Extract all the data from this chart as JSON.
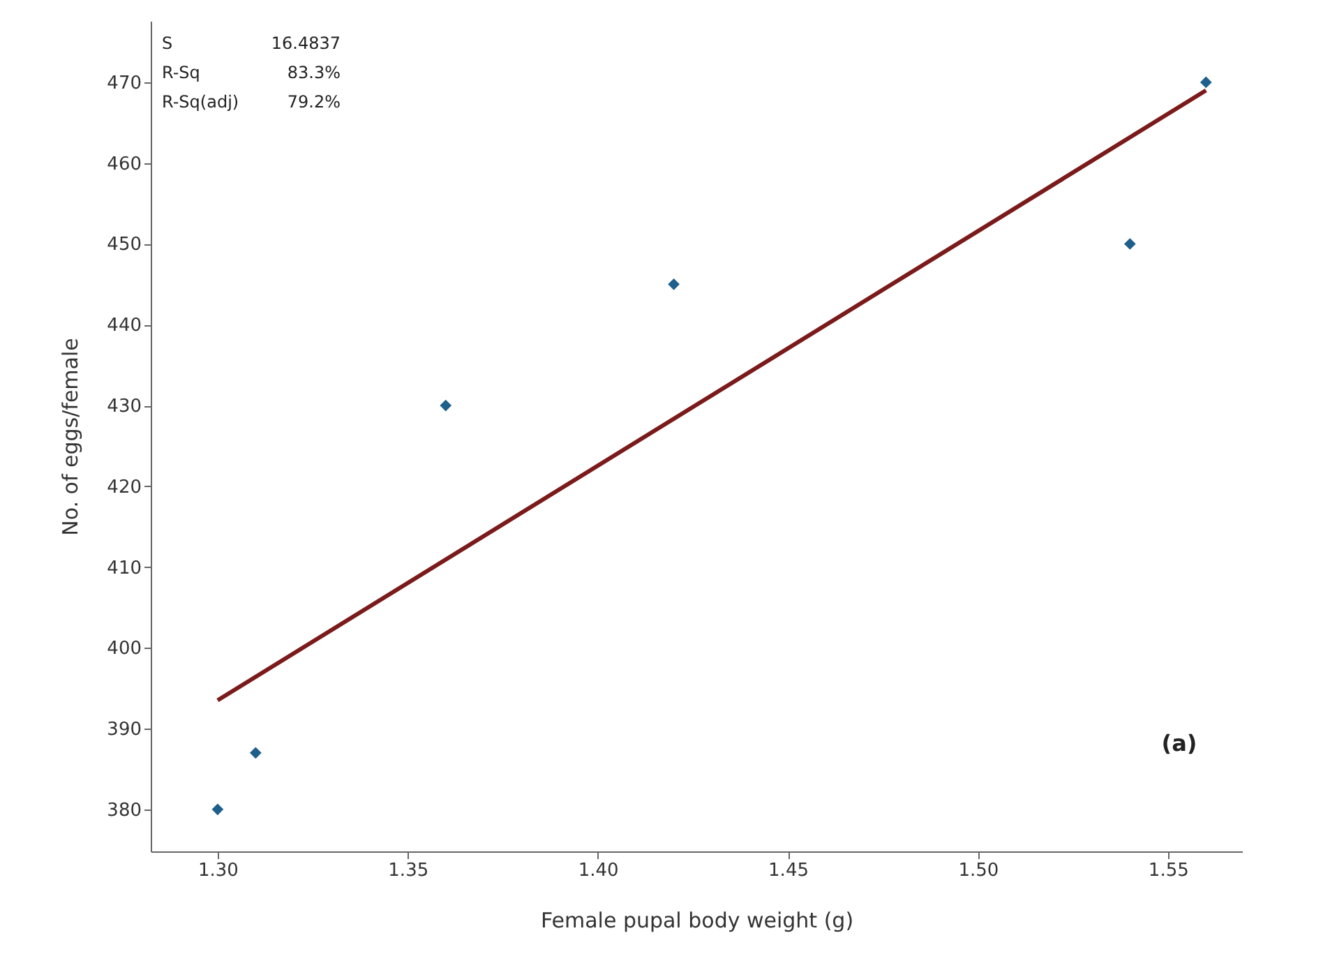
{
  "chart_data": {
    "type": "scatter",
    "xlabel": "Female pupal body weight (g)",
    "ylabel": "No. of eggs/female",
    "x": [
      1.3,
      1.31,
      1.36,
      1.42,
      1.54,
      1.56
    ],
    "series": [
      {
        "color": "#1f5f8b",
        "marker": "diamond",
        "values": [
          380,
          387,
          430,
          445,
          450,
          470
        ]
      },
      {
        "type": "line",
        "color": "#7b1a1a",
        "x": [
          1.3,
          1.56
        ],
        "values": [
          393.5,
          469
        ],
        "line_style": "solid"
      }
    ],
    "xlim": [
      1.2824,
      1.5695
    ],
    "ylim": [
      374.8,
      477.6
    ],
    "xticks": [
      {
        "value": 1.3,
        "label": "1.30"
      },
      {
        "value": 1.35,
        "label": "1.35"
      },
      {
        "value": 1.4,
        "label": "1.40"
      },
      {
        "value": 1.45,
        "label": "1.45"
      },
      {
        "value": 1.5,
        "label": "1.50"
      },
      {
        "value": 1.55,
        "label": "1.55"
      }
    ],
    "yticks": [
      380,
      390,
      400,
      410,
      420,
      430,
      440,
      450,
      460,
      470
    ],
    "grid": false,
    "annotations": [
      "S",
      "16.4837",
      "R-Sq",
      "83.3%",
      "R-Sq(adj)",
      "79.2%",
      "(a)"
    ]
  }
}
